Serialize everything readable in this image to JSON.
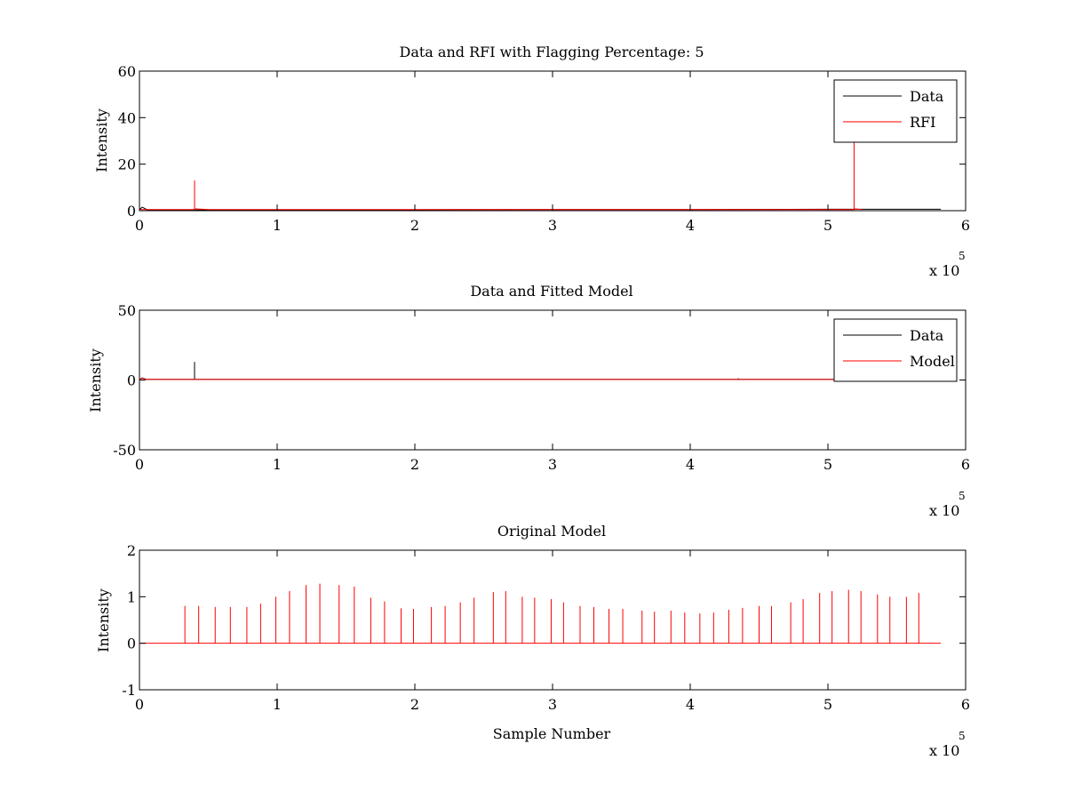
{
  "chart_data": [
    {
      "type": "line",
      "title": "Data and RFI with Flagging Percentage: 5",
      "xlabel": "",
      "ylabel": "Intensity",
      "xlim": [
        0,
        6
      ],
      "ylim": [
        0,
        60
      ],
      "x_multiplier": "x 10",
      "x_multiplier_exp": "5",
      "xticks": [
        "0",
        "1",
        "2",
        "3",
        "4",
        "5",
        "6"
      ],
      "yticks": [
        "0",
        "20",
        "40",
        "60"
      ],
      "legend_location": "top-right",
      "series": [
        {
          "name": "Data",
          "color": "#000000",
          "x": [
            0.0,
            0.02,
            0.05,
            0.06,
            0.3,
            1.0,
            2.0,
            3.0,
            4.0,
            5.0,
            5.82
          ],
          "y": [
            0.5,
            1.5,
            0.6,
            0.3,
            0.3,
            0.4,
            0.4,
            0.5,
            0.5,
            0.6,
            0.6
          ]
        },
        {
          "name": "RFI",
          "color": "#ff0000",
          "x": [
            0.0,
            0.3999,
            0.4,
            0.4001,
            0.5,
            5.1899,
            5.19,
            5.1901,
            5.25
          ],
          "y": [
            0.5,
            0.5,
            13.0,
            0.8,
            0.5,
            0.5,
            40.0,
            0.8,
            0.5
          ]
        }
      ]
    },
    {
      "type": "line",
      "title": "Data and Fitted Model",
      "xlabel": "",
      "ylabel": "Intensity",
      "xlim": [
        0,
        6
      ],
      "ylim": [
        -50,
        50
      ],
      "x_multiplier": "x 10",
      "x_multiplier_exp": "5",
      "xticks": [
        "0",
        "1",
        "2",
        "3",
        "4",
        "5",
        "6"
      ],
      "yticks": [
        "-50",
        "0",
        "50"
      ],
      "legend_location": "top-right",
      "series": [
        {
          "name": "Data",
          "color": "#000000",
          "x": [
            0.0,
            0.02,
            0.05,
            0.3999,
            0.4,
            0.4001,
            4.3499,
            4.35,
            4.3501,
            5.82
          ],
          "y": [
            0.5,
            1.5,
            0.5,
            0.5,
            13.0,
            0.5,
            0.5,
            1.2,
            0.5,
            0.5
          ]
        },
        {
          "name": "Model",
          "color": "#ff0000",
          "x": [
            0.0,
            0.02,
            0.05,
            5.82
          ],
          "y": [
            0.4,
            1.2,
            0.4,
            0.4
          ]
        }
      ]
    },
    {
      "type": "line",
      "title": "Original Model",
      "xlabel": "Sample Number",
      "ylabel": "Intensity",
      "xlim": [
        0,
        6
      ],
      "ylim": [
        -1,
        2
      ],
      "x_multiplier": "x 10",
      "x_multiplier_exp": "5",
      "xticks": [
        "0",
        "1",
        "2",
        "3",
        "4",
        "5",
        "6"
      ],
      "yticks": [
        "-1",
        "0",
        "1",
        "2"
      ],
      "legend_location": "none",
      "baseline": 0.0,
      "x_end": 5.82,
      "series": [
        {
          "color": "#ff0000",
          "spike_x": [
            0.33,
            0.43,
            0.55,
            0.66,
            0.78,
            0.88,
            0.99,
            1.09,
            1.21,
            1.31,
            1.45,
            1.56,
            1.68,
            1.78,
            1.9,
            1.99,
            2.12,
            2.22,
            2.33,
            2.43,
            2.57,
            2.66,
            2.78,
            2.87,
            2.99,
            3.08,
            3.2,
            3.3,
            3.41,
            3.51,
            3.65,
            3.74,
            3.86,
            3.96,
            4.07,
            4.17,
            4.28,
            4.38,
            4.5,
            4.59,
            4.73,
            4.82,
            4.94,
            5.03,
            5.15,
            5.24,
            5.36,
            5.45,
            5.57,
            5.66
          ],
          "spike_y": [
            0.8,
            0.8,
            0.78,
            0.78,
            0.78,
            0.85,
            1.0,
            1.12,
            1.25,
            1.28,
            1.25,
            1.22,
            0.98,
            0.9,
            0.75,
            0.74,
            0.78,
            0.8,
            0.88,
            0.98,
            1.1,
            1.12,
            1.0,
            0.98,
            0.95,
            0.88,
            0.8,
            0.78,
            0.74,
            0.74,
            0.7,
            0.68,
            0.7,
            0.66,
            0.64,
            0.66,
            0.72,
            0.76,
            0.8,
            0.8,
            0.88,
            0.95,
            1.08,
            1.12,
            1.15,
            1.12,
            1.05,
            1.0,
            1.0,
            1.08
          ]
        }
      ]
    }
  ]
}
